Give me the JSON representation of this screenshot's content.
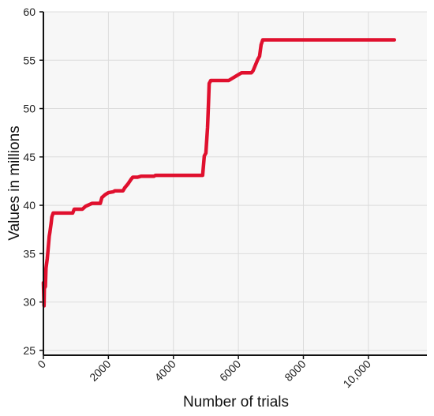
{
  "chart_data": {
    "type": "line",
    "title": "",
    "xlabel": "Number of trials",
    "ylabel": "Values in millions",
    "xlim": [
      0,
      11800
    ],
    "ylim": [
      24.5,
      60
    ],
    "x_ticks": [
      0,
      2000,
      4000,
      6000,
      8000,
      10000
    ],
    "x_tick_labels": [
      "0",
      "2000",
      "4000",
      "6000",
      "8000",
      "10,000"
    ],
    "y_ticks": [
      25,
      30,
      35,
      40,
      45,
      50,
      55,
      60
    ],
    "y_tick_labels": [
      "25",
      "30",
      "35",
      "40",
      "45",
      "50",
      "55",
      "60"
    ],
    "grid": true,
    "colors": {
      "line": "#e0102e",
      "grid": "#dcdcdc",
      "background": "#f7f7f7",
      "axis": "#111111"
    },
    "series": [
      {
        "x": [
          0,
          20,
          30,
          60,
          80,
          120,
          140,
          180,
          200,
          240,
          260,
          300,
          330,
          360,
          900,
          950,
          1200,
          1300,
          1500,
          1600,
          1750,
          1800,
          1900,
          2000,
          2150,
          2200,
          2450,
          2500,
          2600,
          2700,
          2750,
          2900,
          3000,
          3400,
          3450,
          4900,
          4950,
          5000,
          5050,
          5080,
          5100,
          5150,
          5700,
          5800,
          5900,
          6000,
          6100,
          6400,
          6450,
          6600,
          6650,
          6700,
          6750,
          10800
        ],
        "y": [
          32,
          29.6,
          31.4,
          31.6,
          33.5,
          34.5,
          35.3,
          36.8,
          37.2,
          38.2,
          38.8,
          39.2,
          39.2,
          39.2,
          39.2,
          39.6,
          39.6,
          39.9,
          40.2,
          40.2,
          40.2,
          40.8,
          41.1,
          41.3,
          41.4,
          41.5,
          41.5,
          41.8,
          42.2,
          42.7,
          42.9,
          42.9,
          43.0,
          43.0,
          43.1,
          43.1,
          45.1,
          45.4,
          48.0,
          50.5,
          52.6,
          52.9,
          52.9,
          53.1,
          53.3,
          53.5,
          53.7,
          53.7,
          53.9,
          55.1,
          55.4,
          56.6,
          57.1,
          57.1
        ]
      }
    ]
  }
}
